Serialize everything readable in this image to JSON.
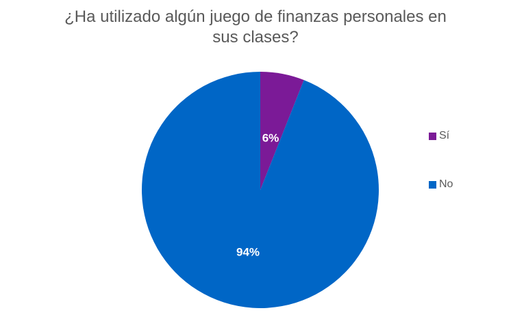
{
  "chart_data": {
    "type": "pie",
    "title": "¿Ha utilizado algún juego de finanzas personales en sus clases?",
    "title_lines": [
      "¿Ha utilizado algún juego de finanzas personales en",
      "sus clases?"
    ],
    "categories": [
      "Sí",
      "No"
    ],
    "values": [
      6,
      94
    ],
    "data_labels": [
      "6%",
      "94%"
    ],
    "colors": [
      "#7B1A97",
      "#0066C6"
    ],
    "legend_position": "right"
  }
}
